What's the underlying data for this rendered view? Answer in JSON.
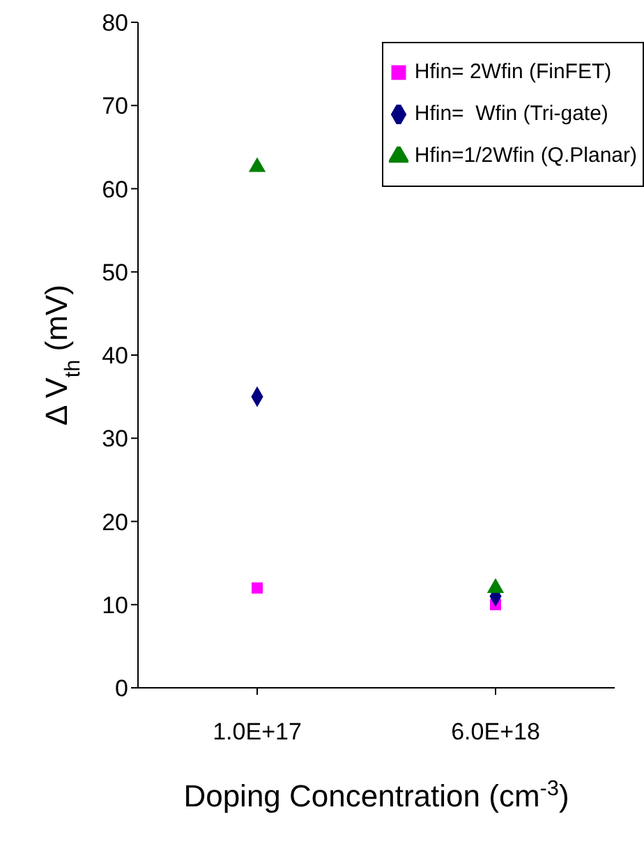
{
  "chart_data": {
    "type": "scatter",
    "xlabel": "Doping Concentration (cm$^{-3}$)",
    "ylabel": "Δ V$_{th}$ (mV)",
    "categories": [
      "1.0E+17",
      "6.0E+18"
    ],
    "series": [
      {
        "name": "Hfin= 2Wfin (FinFET)",
        "color": "#ff00ff",
        "marker": "square",
        "values": [
          12,
          10
        ]
      },
      {
        "name": "Hfin=  Wfin (Tri-gate)",
        "color": "#000080",
        "marker": "diamond",
        "values": [
          35,
          11
        ]
      },
      {
        "name": "Hfin=1/2Wfin (Q.Planar)",
        "color": "#008000",
        "marker": "triangle",
        "values": [
          62.6,
          12
        ]
      }
    ],
    "ylim": [
      0,
      80
    ],
    "yticks": [
      0,
      10,
      20,
      30,
      40,
      50,
      60,
      70,
      80
    ],
    "grid": false,
    "legend": "top right"
  }
}
